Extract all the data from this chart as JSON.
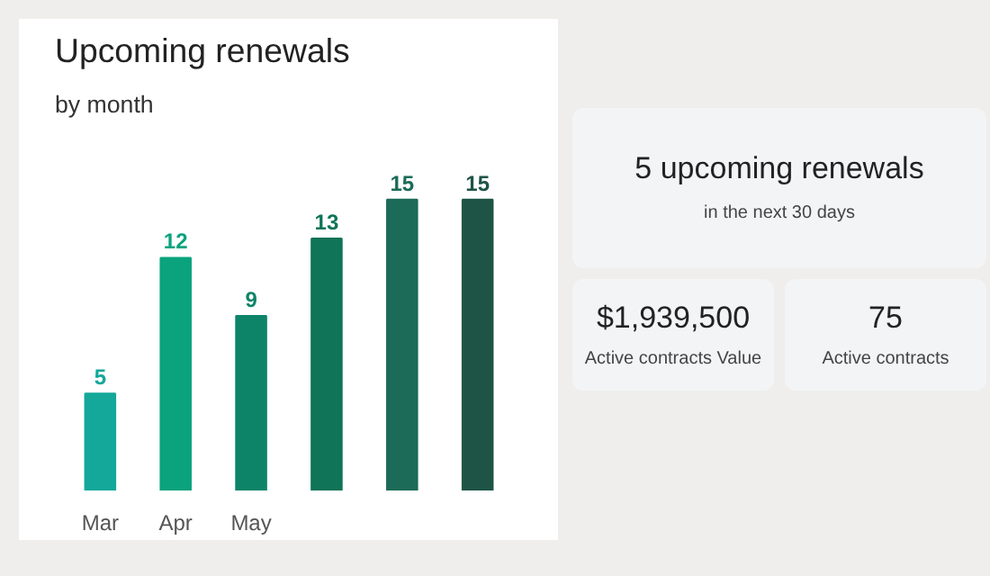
{
  "chart_data": [
    {
      "type": "bar",
      "title": "Upcoming renewals",
      "subtitle": "by month",
      "categories": [
        "Mar",
        "Apr",
        "May",
        null,
        null,
        null
      ],
      "values": [
        5,
        12,
        9,
        13,
        15,
        15
      ],
      "colors": [
        "#14a89a",
        "#0aa37d",
        "#0d8468",
        "#0f7458",
        "#1c6b58",
        "#1e5446"
      ],
      "data_labels": true,
      "grid": false,
      "tick_labels": "x"
    },
    {
      "type": "other",
      "title": "5 upcoming renewals",
      "subtitle": "in the next 30 days",
      "annotations": [
        "$1,939,500",
        "Active contracts Value",
        "75",
        "Active contracts"
      ]
    }
  ]
}
